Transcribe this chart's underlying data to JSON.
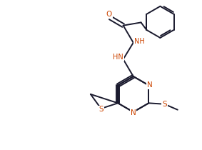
{
  "bg_color": "#ffffff",
  "bond_color": "#1a1a2e",
  "atom_color": "#cc4400",
  "line_width": 1.4,
  "font_size": 7.5,
  "fig_width": 2.83,
  "fig_height": 2.1,
  "dpi": 100,
  "xlim": [
    0,
    10
  ],
  "ylim": [
    0,
    7.4
  ]
}
